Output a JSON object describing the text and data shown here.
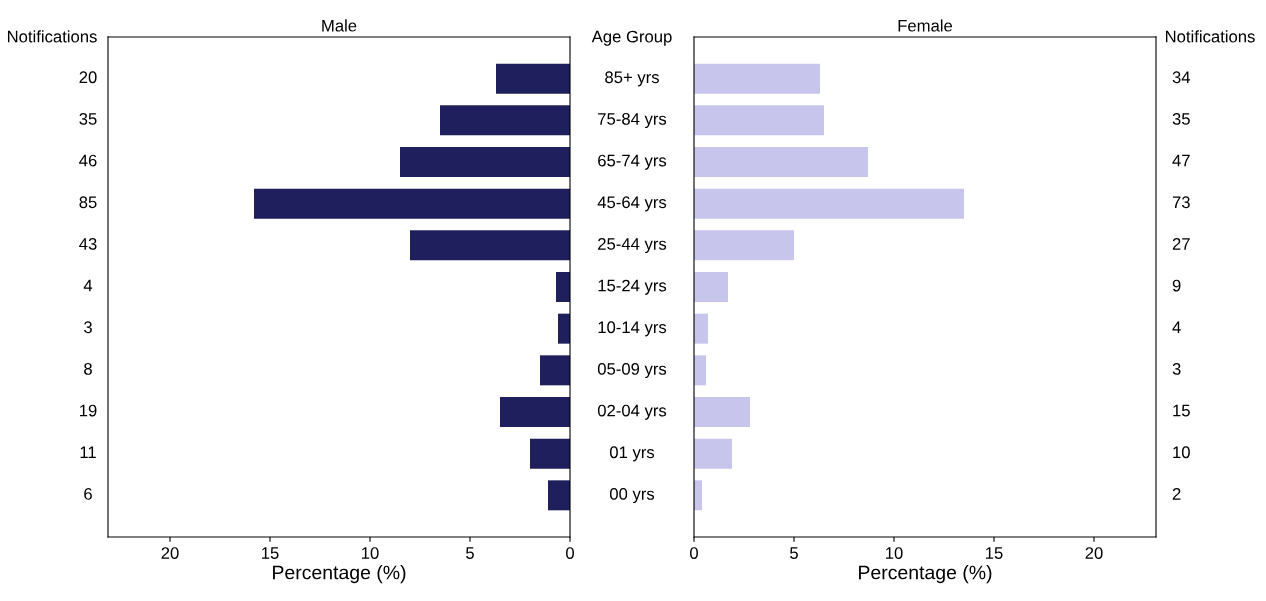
{
  "chart_data": [
    {
      "type": "bar",
      "orientation": "horizontal",
      "title": "Male",
      "xlabel": "Percentage (%)",
      "ylabel": "Age Group",
      "y2label": "Notifications",
      "categories": [
        "85+ yrs",
        "75-84 yrs",
        "65-74 yrs",
        "45-64 yrs",
        "25-44 yrs",
        "15-24 yrs",
        "10-14 yrs",
        "05-09 yrs",
        "02-04 yrs",
        "01 yrs",
        "00 yrs"
      ],
      "y2_categories": [
        "20",
        "35",
        "46",
        "85",
        "43",
        "4",
        "3",
        "8",
        "19",
        "11",
        "6"
      ],
      "values": [
        3.7,
        6.5,
        8.5,
        15.8,
        8.0,
        0.7,
        0.6,
        1.5,
        3.5,
        2.0,
        1.1
      ],
      "color": "#1f1f5e",
      "xlim": [
        23.1,
        0
      ],
      "xticks": [
        20,
        15,
        10,
        5,
        0
      ],
      "grid": false
    },
    {
      "type": "bar",
      "orientation": "horizontal",
      "title": "Female",
      "xlabel": "Percentage (%)",
      "y2label": "Notifications",
      "y2_categories": [
        "34",
        "35",
        "47",
        "73",
        "27",
        "9",
        "4",
        "3",
        "15",
        "10",
        "2"
      ],
      "values": [
        6.3,
        6.5,
        8.7,
        13.5,
        5.0,
        1.7,
        0.7,
        0.6,
        2.8,
        1.9,
        0.4
      ],
      "color": "#c8c5ec",
      "xlim": [
        0,
        23.1
      ],
      "xticks": [
        0,
        5,
        10,
        15,
        20
      ],
      "grid": false
    }
  ]
}
